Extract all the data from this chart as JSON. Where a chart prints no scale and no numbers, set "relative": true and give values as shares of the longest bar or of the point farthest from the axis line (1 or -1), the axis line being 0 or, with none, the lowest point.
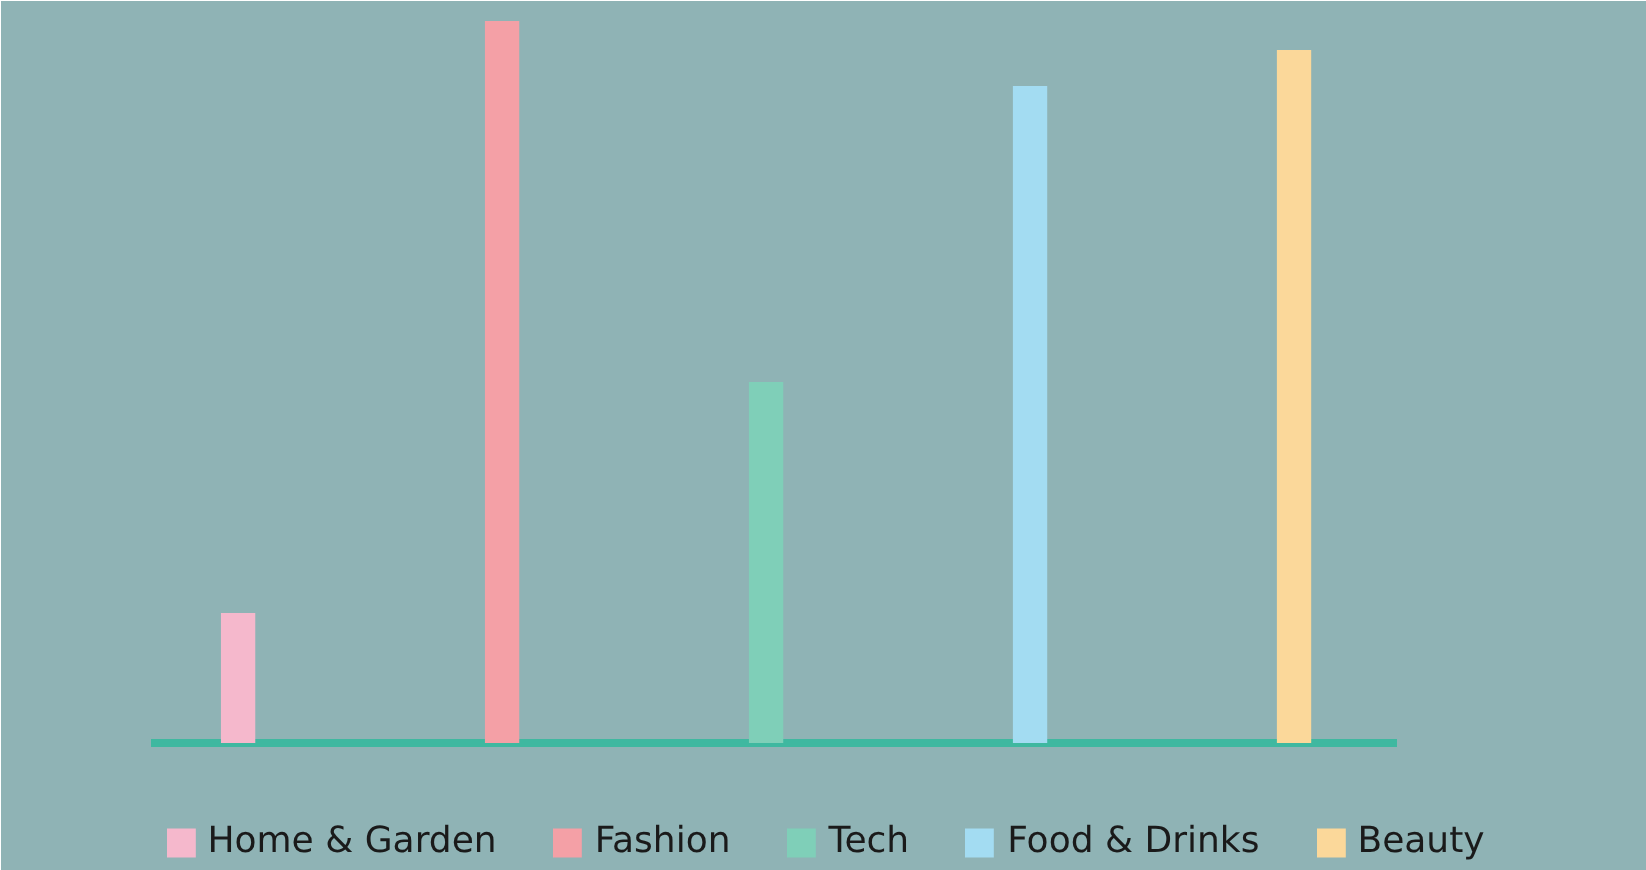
{
  "chart_data": {
    "type": "bar",
    "relative": true,
    "stacked": true,
    "categories": [
      null,
      null,
      null,
      null,
      null
    ],
    "series": [
      {
        "name": "Home & Garden",
        "color": "#f5b8cc",
        "values": [
          0.18,
          null,
          null,
          null,
          null
        ]
      },
      {
        "name": "Fashion",
        "color": "#f4a0a6",
        "values": [
          null,
          1,
          null,
          null,
          null
        ]
      },
      {
        "name": "Tech",
        "color": "#7fcfb8",
        "values": [
          null,
          null,
          0.5,
          null,
          null
        ]
      },
      {
        "name": "Food & Drinks",
        "color": "#a3dcf2",
        "values": [
          null,
          null,
          null,
          0.91,
          null
        ]
      },
      {
        "name": "Beauty",
        "color": "#fbd89a",
        "values": [
          null,
          null,
          null,
          null,
          0.96
        ]
      }
    ],
    "legend": "bottom"
  }
}
